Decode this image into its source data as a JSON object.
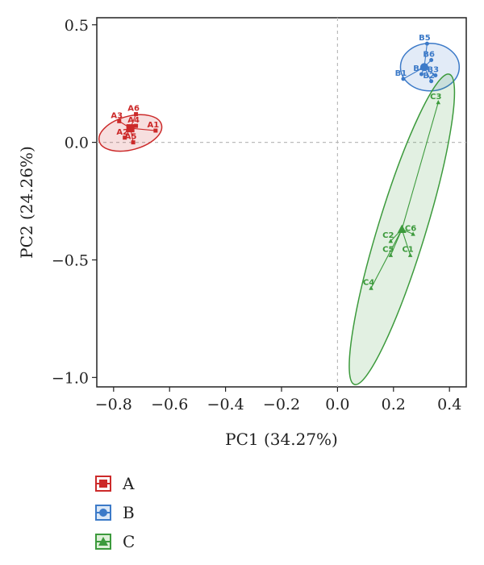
{
  "chart_data": {
    "type": "scatter",
    "title": "",
    "xlabel": "PC1 (34.27%)",
    "ylabel": "PC2 (24.26%)",
    "xlim": [
      -0.86,
      0.46
    ],
    "ylim": [
      -1.04,
      0.53
    ],
    "xticks": [
      -0.8,
      -0.6,
      -0.4,
      -0.2,
      0.0,
      0.2,
      0.4
    ],
    "xtick_labels": [
      "−0.8",
      "−0.6",
      "−0.4",
      "−0.2",
      "0.0",
      "0.2",
      "0.4"
    ],
    "yticks": [
      0.5,
      0.0,
      -0.5,
      -1.0
    ],
    "ytick_labels": [
      "0.5",
      "0.0",
      "−0.5",
      "−1.0"
    ],
    "reference_lines": {
      "x": 0,
      "y": 0
    },
    "legend_position": "bottom-left",
    "series": [
      {
        "name": "A",
        "color": "#cc2a2a",
        "marker": "square",
        "centroid": [
          -0.74,
          0.06
        ],
        "ellipse": {
          "center": [
            -0.74,
            0.04
          ],
          "rx": 0.115,
          "ry": 0.06,
          "angle_deg": -15
        },
        "points": [
          {
            "label": "A1",
            "x": -0.65,
            "y": 0.05
          },
          {
            "label": "A2",
            "x": -0.76,
            "y": 0.02
          },
          {
            "label": "A3",
            "x": -0.78,
            "y": 0.09
          },
          {
            "label": "A4",
            "x": -0.72,
            "y": 0.07
          },
          {
            "label": "A5",
            "x": -0.73,
            "y": 0.0
          },
          {
            "label": "A6",
            "x": -0.72,
            "y": 0.12
          }
        ]
      },
      {
        "name": "B",
        "color": "#3c7ac8",
        "marker": "circle",
        "centroid": [
          0.31,
          0.32
        ],
        "ellipse": {
          "center": [
            0.33,
            0.32
          ],
          "rx": 0.105,
          "ry": 0.085,
          "angle_deg": 0
        },
        "points": [
          {
            "label": "B1",
            "x": 0.235,
            "y": 0.27
          },
          {
            "label": "B2",
            "x": 0.335,
            "y": 0.26
          },
          {
            "label": "B3",
            "x": 0.35,
            "y": 0.285
          },
          {
            "label": "B4",
            "x": 0.3,
            "y": 0.29
          },
          {
            "label": "B5",
            "x": 0.32,
            "y": 0.42
          },
          {
            "label": "B6",
            "x": 0.335,
            "y": 0.35
          }
        ]
      },
      {
        "name": "C",
        "color": "#3c9a3c",
        "marker": "triangle",
        "centroid": [
          0.23,
          -0.37
        ],
        "ellipse": {
          "center": [
            0.23,
            -0.37
          ],
          "rx": 0.58,
          "ry": 0.085,
          "angle_deg": -73
        },
        "points": [
          {
            "label": "C1",
            "x": 0.26,
            "y": -0.48
          },
          {
            "label": "C2",
            "x": 0.19,
            "y": -0.42
          },
          {
            "label": "C3",
            "x": 0.36,
            "y": 0.17
          },
          {
            "label": "C4",
            "x": 0.12,
            "y": -0.62
          },
          {
            "label": "C5",
            "x": 0.19,
            "y": -0.48
          },
          {
            "label": "C6",
            "x": 0.27,
            "y": -0.39
          }
        ]
      }
    ]
  },
  "legend": {
    "items": [
      {
        "label": "A",
        "color": "#cc2a2a",
        "marker": "square"
      },
      {
        "label": "B",
        "color": "#3c7ac8",
        "marker": "circle"
      },
      {
        "label": "C",
        "color": "#3c9a3c",
        "marker": "triangle"
      }
    ]
  }
}
